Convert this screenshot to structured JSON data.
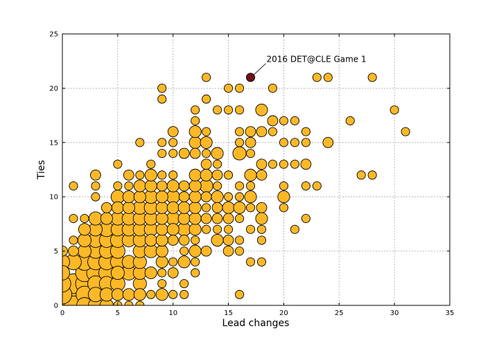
{
  "chart_data": {
    "type": "scatter",
    "title": "",
    "xlabel": "Lead changes",
    "ylabel": "Ties",
    "xlim": [
      0,
      35
    ],
    "ylim": [
      0,
      25
    ],
    "xticks": [
      0,
      5,
      10,
      15,
      20,
      25,
      30,
      35
    ],
    "yticks": [
      0,
      5,
      10,
      15,
      20,
      25
    ],
    "grid": true,
    "colors": {
      "marker": "#FDB827",
      "highlight": "#6E0F1A",
      "edge": "#000000",
      "grid": "#aaaaaa"
    },
    "annotation": {
      "text": "2016 DET@CLE Game 1",
      "x": 17,
      "y": 21
    },
    "size_encoding": "marker area proportional to number of games",
    "points": [
      {
        "x": 0,
        "y": 0,
        "s": 12
      },
      {
        "x": 1,
        "y": 0,
        "s": 10
      },
      {
        "x": 0,
        "y": 1,
        "s": 10
      },
      {
        "x": 1,
        "y": 1,
        "s": 12
      },
      {
        "x": 1,
        "y": 2,
        "s": 11
      },
      {
        "x": 0,
        "y": 2,
        "s": 8
      },
      {
        "x": 2,
        "y": 0,
        "s": 7
      },
      {
        "x": 2,
        "y": 1,
        "s": 8
      },
      {
        "x": 2,
        "y": 2,
        "s": 9
      },
      {
        "x": 2,
        "y": 3,
        "s": 9
      },
      {
        "x": 3,
        "y": 3,
        "s": 9
      },
      {
        "x": 2,
        "y": 4,
        "s": 8
      },
      {
        "x": 1,
        "y": 4,
        "s": 7
      },
      {
        "x": 0,
        "y": 4,
        "s": 6
      },
      {
        "x": 0,
        "y": 3,
        "s": 6
      },
      {
        "x": 0,
        "y": 5,
        "s": 3
      },
      {
        "x": 1,
        "y": 5,
        "s": 3
      },
      {
        "x": 3,
        "y": 0,
        "s": 6
      },
      {
        "x": 3,
        "y": 1,
        "s": 6
      },
      {
        "x": 3,
        "y": 2,
        "s": 7
      },
      {
        "x": 3,
        "y": 4,
        "s": 7
      },
      {
        "x": 3,
        "y": 5,
        "s": 6
      },
      {
        "x": 3,
        "y": 6,
        "s": 6
      },
      {
        "x": 3,
        "y": 7,
        "s": 5
      },
      {
        "x": 3,
        "y": 8,
        "s": 5
      },
      {
        "x": 2,
        "y": 5,
        "s": 5
      },
      {
        "x": 2,
        "y": 6,
        "s": 5
      },
      {
        "x": 2,
        "y": 7,
        "s": 4
      },
      {
        "x": 1,
        "y": 6,
        "s": 2
      },
      {
        "x": 1,
        "y": 8,
        "s": 2
      },
      {
        "x": 1,
        "y": 11,
        "s": 2
      },
      {
        "x": 2,
        "y": 8,
        "s": 2
      },
      {
        "x": 3,
        "y": 10,
        "s": 2
      },
      {
        "x": 3,
        "y": 11,
        "s": 2
      },
      {
        "x": 3,
        "y": 12,
        "s": 3
      },
      {
        "x": 4,
        "y": 0,
        "s": 5
      },
      {
        "x": 4,
        "y": 1,
        "s": 5
      },
      {
        "x": 4,
        "y": 2,
        "s": 6
      },
      {
        "x": 4,
        "y": 3,
        "s": 7
      },
      {
        "x": 4,
        "y": 4,
        "s": 7
      },
      {
        "x": 4,
        "y": 5,
        "s": 6
      },
      {
        "x": 4,
        "y": 6,
        "s": 6
      },
      {
        "x": 4,
        "y": 7,
        "s": 6
      },
      {
        "x": 4,
        "y": 8,
        "s": 4
      },
      {
        "x": 4,
        "y": 9,
        "s": 3
      },
      {
        "x": 5,
        "y": 0,
        "s": 2
      },
      {
        "x": 5,
        "y": 1,
        "s": 4
      },
      {
        "x": 5,
        "y": 2,
        "s": 6
      },
      {
        "x": 5,
        "y": 3,
        "s": 5
      },
      {
        "x": 5,
        "y": 4,
        "s": 6
      },
      {
        "x": 5,
        "y": 5,
        "s": 6
      },
      {
        "x": 5,
        "y": 6,
        "s": 6
      },
      {
        "x": 5,
        "y": 7,
        "s": 5
      },
      {
        "x": 5,
        "y": 8,
        "s": 5
      },
      {
        "x": 5,
        "y": 9,
        "s": 4
      },
      {
        "x": 5,
        "y": 10,
        "s": 5
      },
      {
        "x": 5,
        "y": 11,
        "s": 2
      },
      {
        "x": 5,
        "y": 13,
        "s": 2
      },
      {
        "x": 6,
        "y": 0,
        "s": 2
      },
      {
        "x": 6,
        "y": 1,
        "s": 4
      },
      {
        "x": 6,
        "y": 3,
        "s": 6
      },
      {
        "x": 6,
        "y": 4,
        "s": 5
      },
      {
        "x": 6,
        "y": 6,
        "s": 5
      },
      {
        "x": 6,
        "y": 7,
        "s": 5
      },
      {
        "x": 6,
        "y": 8,
        "s": 5
      },
      {
        "x": 6,
        "y": 9,
        "s": 4
      },
      {
        "x": 6,
        "y": 10,
        "s": 4
      },
      {
        "x": 6,
        "y": 11,
        "s": 2
      },
      {
        "x": 6,
        "y": 12,
        "s": 3
      },
      {
        "x": 7,
        "y": 0,
        "s": 2
      },
      {
        "x": 7,
        "y": 1,
        "s": 4
      },
      {
        "x": 7,
        "y": 2,
        "s": 5
      },
      {
        "x": 7,
        "y": 3,
        "s": 5
      },
      {
        "x": 7,
        "y": 4,
        "s": 5
      },
      {
        "x": 7,
        "y": 5,
        "s": 5
      },
      {
        "x": 7,
        "y": 6,
        "s": 5
      },
      {
        "x": 7,
        "y": 7,
        "s": 5
      },
      {
        "x": 7,
        "y": 8,
        "s": 5
      },
      {
        "x": 7,
        "y": 9,
        "s": 5
      },
      {
        "x": 7,
        "y": 10,
        "s": 4
      },
      {
        "x": 7,
        "y": 11,
        "s": 4
      },
      {
        "x": 7,
        "y": 12,
        "s": 2
      },
      {
        "x": 7,
        "y": 15,
        "s": 2
      },
      {
        "x": 8,
        "y": 1,
        "s": 2
      },
      {
        "x": 8,
        "y": 3,
        "s": 4
      },
      {
        "x": 8,
        "y": 5,
        "s": 5
      },
      {
        "x": 8,
        "y": 6,
        "s": 4
      },
      {
        "x": 8,
        "y": 7,
        "s": 5
      },
      {
        "x": 8,
        "y": 8,
        "s": 5
      },
      {
        "x": 8,
        "y": 9,
        "s": 5
      },
      {
        "x": 8,
        "y": 10,
        "s": 5
      },
      {
        "x": 8,
        "y": 11,
        "s": 4
      },
      {
        "x": 8,
        "y": 12,
        "s": 4
      },
      {
        "x": 8,
        "y": 13,
        "s": 2
      },
      {
        "x": 9,
        "y": 1,
        "s": 4
      },
      {
        "x": 9,
        "y": 2,
        "s": 2
      },
      {
        "x": 9,
        "y": 3,
        "s": 2
      },
      {
        "x": 9,
        "y": 4,
        "s": 4
      },
      {
        "x": 9,
        "y": 5,
        "s": 4
      },
      {
        "x": 9,
        "y": 6,
        "s": 4
      },
      {
        "x": 9,
        "y": 7,
        "s": 4
      },
      {
        "x": 9,
        "y": 8,
        "s": 4
      },
      {
        "x": 9,
        "y": 9,
        "s": 4
      },
      {
        "x": 9,
        "y": 10,
        "s": 4
      },
      {
        "x": 9,
        "y": 11,
        "s": 3
      },
      {
        "x": 9,
        "y": 12,
        "s": 2
      },
      {
        "x": 9,
        "y": 14,
        "s": 2
      },
      {
        "x": 9,
        "y": 15,
        "s": 2
      },
      {
        "x": 9,
        "y": 19,
        "s": 2
      },
      {
        "x": 9,
        "y": 20,
        "s": 2
      },
      {
        "x": 10,
        "y": 1,
        "s": 2
      },
      {
        "x": 10,
        "y": 3,
        "s": 3
      },
      {
        "x": 10,
        "y": 4,
        "s": 2
      },
      {
        "x": 10,
        "y": 6,
        "s": 3
      },
      {
        "x": 10,
        "y": 7,
        "s": 4
      },
      {
        "x": 10,
        "y": 8,
        "s": 5
      },
      {
        "x": 10,
        "y": 9,
        "s": 4
      },
      {
        "x": 10,
        "y": 10,
        "s": 5
      },
      {
        "x": 10,
        "y": 11,
        "s": 4
      },
      {
        "x": 10,
        "y": 12,
        "s": 2
      },
      {
        "x": 10,
        "y": 14,
        "s": 2
      },
      {
        "x": 10,
        "y": 15,
        "s": 2
      },
      {
        "x": 10,
        "y": 16,
        "s": 3
      },
      {
        "x": 11,
        "y": 1,
        "s": 2
      },
      {
        "x": 11,
        "y": 2,
        "s": 2
      },
      {
        "x": 11,
        "y": 4,
        "s": 4
      },
      {
        "x": 11,
        "y": 5,
        "s": 2
      },
      {
        "x": 11,
        "y": 6,
        "s": 3
      },
      {
        "x": 11,
        "y": 7,
        "s": 5
      },
      {
        "x": 11,
        "y": 8,
        "s": 4
      },
      {
        "x": 11,
        "y": 9,
        "s": 4
      },
      {
        "x": 11,
        "y": 10,
        "s": 3
      },
      {
        "x": 11,
        "y": 11,
        "s": 3
      },
      {
        "x": 11,
        "y": 14,
        "s": 3
      },
      {
        "x": 12,
        "y": 3,
        "s": 2
      },
      {
        "x": 12,
        "y": 4,
        "s": 2
      },
      {
        "x": 12,
        "y": 5,
        "s": 4
      },
      {
        "x": 12,
        "y": 6,
        "s": 2
      },
      {
        "x": 12,
        "y": 7,
        "s": 4
      },
      {
        "x": 12,
        "y": 8,
        "s": 4
      },
      {
        "x": 12,
        "y": 9,
        "s": 4
      },
      {
        "x": 12,
        "y": 10,
        "s": 4
      },
      {
        "x": 12,
        "y": 11,
        "s": 4
      },
      {
        "x": 12,
        "y": 12,
        "s": 4
      },
      {
        "x": 12,
        "y": 14,
        "s": 3
      },
      {
        "x": 12,
        "y": 15,
        "s": 4
      },
      {
        "x": 12,
        "y": 16,
        "s": 4
      },
      {
        "x": 12,
        "y": 17,
        "s": 2
      },
      {
        "x": 12,
        "y": 18,
        "s": 2
      },
      {
        "x": 13,
        "y": 5,
        "s": 3
      },
      {
        "x": 13,
        "y": 7,
        "s": 2
      },
      {
        "x": 13,
        "y": 8,
        "s": 3
      },
      {
        "x": 13,
        "y": 9,
        "s": 2
      },
      {
        "x": 13,
        "y": 10,
        "s": 3
      },
      {
        "x": 13,
        "y": 11,
        "s": 5
      },
      {
        "x": 13,
        "y": 12,
        "s": 4
      },
      {
        "x": 13,
        "y": 13,
        "s": 3
      },
      {
        "x": 13,
        "y": 14,
        "s": 2
      },
      {
        "x": 13,
        "y": 15,
        "s": 4
      },
      {
        "x": 13,
        "y": 16,
        "s": 2
      },
      {
        "x": 13,
        "y": 19,
        "s": 2
      },
      {
        "x": 13,
        "y": 21,
        "s": 2
      },
      {
        "x": 14,
        "y": 6,
        "s": 4
      },
      {
        "x": 14,
        "y": 7,
        "s": 2
      },
      {
        "x": 14,
        "y": 8,
        "s": 3
      },
      {
        "x": 14,
        "y": 9,
        "s": 3
      },
      {
        "x": 14,
        "y": 10,
        "s": 4
      },
      {
        "x": 14,
        "y": 11,
        "s": 2
      },
      {
        "x": 14,
        "y": 12,
        "s": 3
      },
      {
        "x": 14,
        "y": 13,
        "s": 2
      },
      {
        "x": 14,
        "y": 14,
        "s": 4
      },
      {
        "x": 14,
        "y": 18,
        "s": 2
      },
      {
        "x": 15,
        "y": 5,
        "s": 3
      },
      {
        "x": 15,
        "y": 6,
        "s": 3
      },
      {
        "x": 15,
        "y": 7,
        "s": 2
      },
      {
        "x": 15,
        "y": 8,
        "s": 3
      },
      {
        "x": 15,
        "y": 9,
        "s": 4
      },
      {
        "x": 15,
        "y": 10,
        "s": 2
      },
      {
        "x": 15,
        "y": 12,
        "s": 2
      },
      {
        "x": 15,
        "y": 18,
        "s": 2
      },
      {
        "x": 15,
        "y": 20,
        "s": 2
      },
      {
        "x": 16,
        "y": 1,
        "s": 2
      },
      {
        "x": 16,
        "y": 5,
        "s": 2
      },
      {
        "x": 16,
        "y": 6,
        "s": 2
      },
      {
        "x": 16,
        "y": 8,
        "s": 2
      },
      {
        "x": 16,
        "y": 9,
        "s": 4
      },
      {
        "x": 16,
        "y": 10,
        "s": 2
      },
      {
        "x": 16,
        "y": 11,
        "s": 2
      },
      {
        "x": 16,
        "y": 14,
        "s": 5
      },
      {
        "x": 16,
        "y": 15,
        "s": 2
      },
      {
        "x": 16,
        "y": 16,
        "s": 2
      },
      {
        "x": 16,
        "y": 18,
        "s": 2
      },
      {
        "x": 16,
        "y": 20,
        "s": 2
      },
      {
        "x": 17,
        "y": 4,
        "s": 2
      },
      {
        "x": 17,
        "y": 7,
        "s": 2
      },
      {
        "x": 17,
        "y": 9,
        "s": 2
      },
      {
        "x": 17,
        "y": 10,
        "s": 4
      },
      {
        "x": 17,
        "y": 11,
        "s": 2
      },
      {
        "x": 17,
        "y": 12,
        "s": 4
      },
      {
        "x": 17,
        "y": 14,
        "s": 2
      },
      {
        "x": 17,
        "y": 15,
        "s": 3
      },
      {
        "x": 17,
        "y": 16,
        "s": 3
      },
      {
        "x": 17,
        "y": 21,
        "s": 2,
        "highlight": true
      },
      {
        "x": 18,
        "y": 4,
        "s": 2
      },
      {
        "x": 18,
        "y": 6,
        "s": 2
      },
      {
        "x": 18,
        "y": 7,
        "s": 2
      },
      {
        "x": 18,
        "y": 8,
        "s": 4
      },
      {
        "x": 18,
        "y": 9,
        "s": 3
      },
      {
        "x": 18,
        "y": 12,
        "s": 3
      },
      {
        "x": 18,
        "y": 13,
        "s": 3
      },
      {
        "x": 18,
        "y": 16,
        "s": 3
      },
      {
        "x": 18,
        "y": 18,
        "s": 4
      },
      {
        "x": 19,
        "y": 13,
        "s": 2
      },
      {
        "x": 19,
        "y": 16,
        "s": 2
      },
      {
        "x": 19,
        "y": 17,
        "s": 3
      },
      {
        "x": 19,
        "y": 20,
        "s": 2
      },
      {
        "x": 20,
        "y": 9,
        "s": 2
      },
      {
        "x": 20,
        "y": 10,
        "s": 4
      },
      {
        "x": 20,
        "y": 11,
        "s": 2
      },
      {
        "x": 20,
        "y": 13,
        "s": 2
      },
      {
        "x": 20,
        "y": 15,
        "s": 2
      },
      {
        "x": 20,
        "y": 17,
        "s": 2
      },
      {
        "x": 21,
        "y": 7,
        "s": 2
      },
      {
        "x": 21,
        "y": 13,
        "s": 2
      },
      {
        "x": 21,
        "y": 15,
        "s": 2
      },
      {
        "x": 21,
        "y": 17,
        "s": 2
      },
      {
        "x": 22,
        "y": 8,
        "s": 2
      },
      {
        "x": 22,
        "y": 11,
        "s": 2
      },
      {
        "x": 22,
        "y": 13,
        "s": 3
      },
      {
        "x": 22,
        "y": 15,
        "s": 2
      },
      {
        "x": 22,
        "y": 16,
        "s": 2
      },
      {
        "x": 23,
        "y": 11,
        "s": 2
      },
      {
        "x": 23,
        "y": 21,
        "s": 2
      },
      {
        "x": 24,
        "y": 15,
        "s": 3
      },
      {
        "x": 24,
        "y": 21,
        "s": 2
      },
      {
        "x": 26,
        "y": 17,
        "s": 2
      },
      {
        "x": 27,
        "y": 12,
        "s": 2
      },
      {
        "x": 28,
        "y": 12,
        "s": 2
      },
      {
        "x": 28,
        "y": 21,
        "s": 2
      },
      {
        "x": 30,
        "y": 18,
        "s": 2
      },
      {
        "x": 31,
        "y": 16,
        "s": 2
      }
    ]
  }
}
